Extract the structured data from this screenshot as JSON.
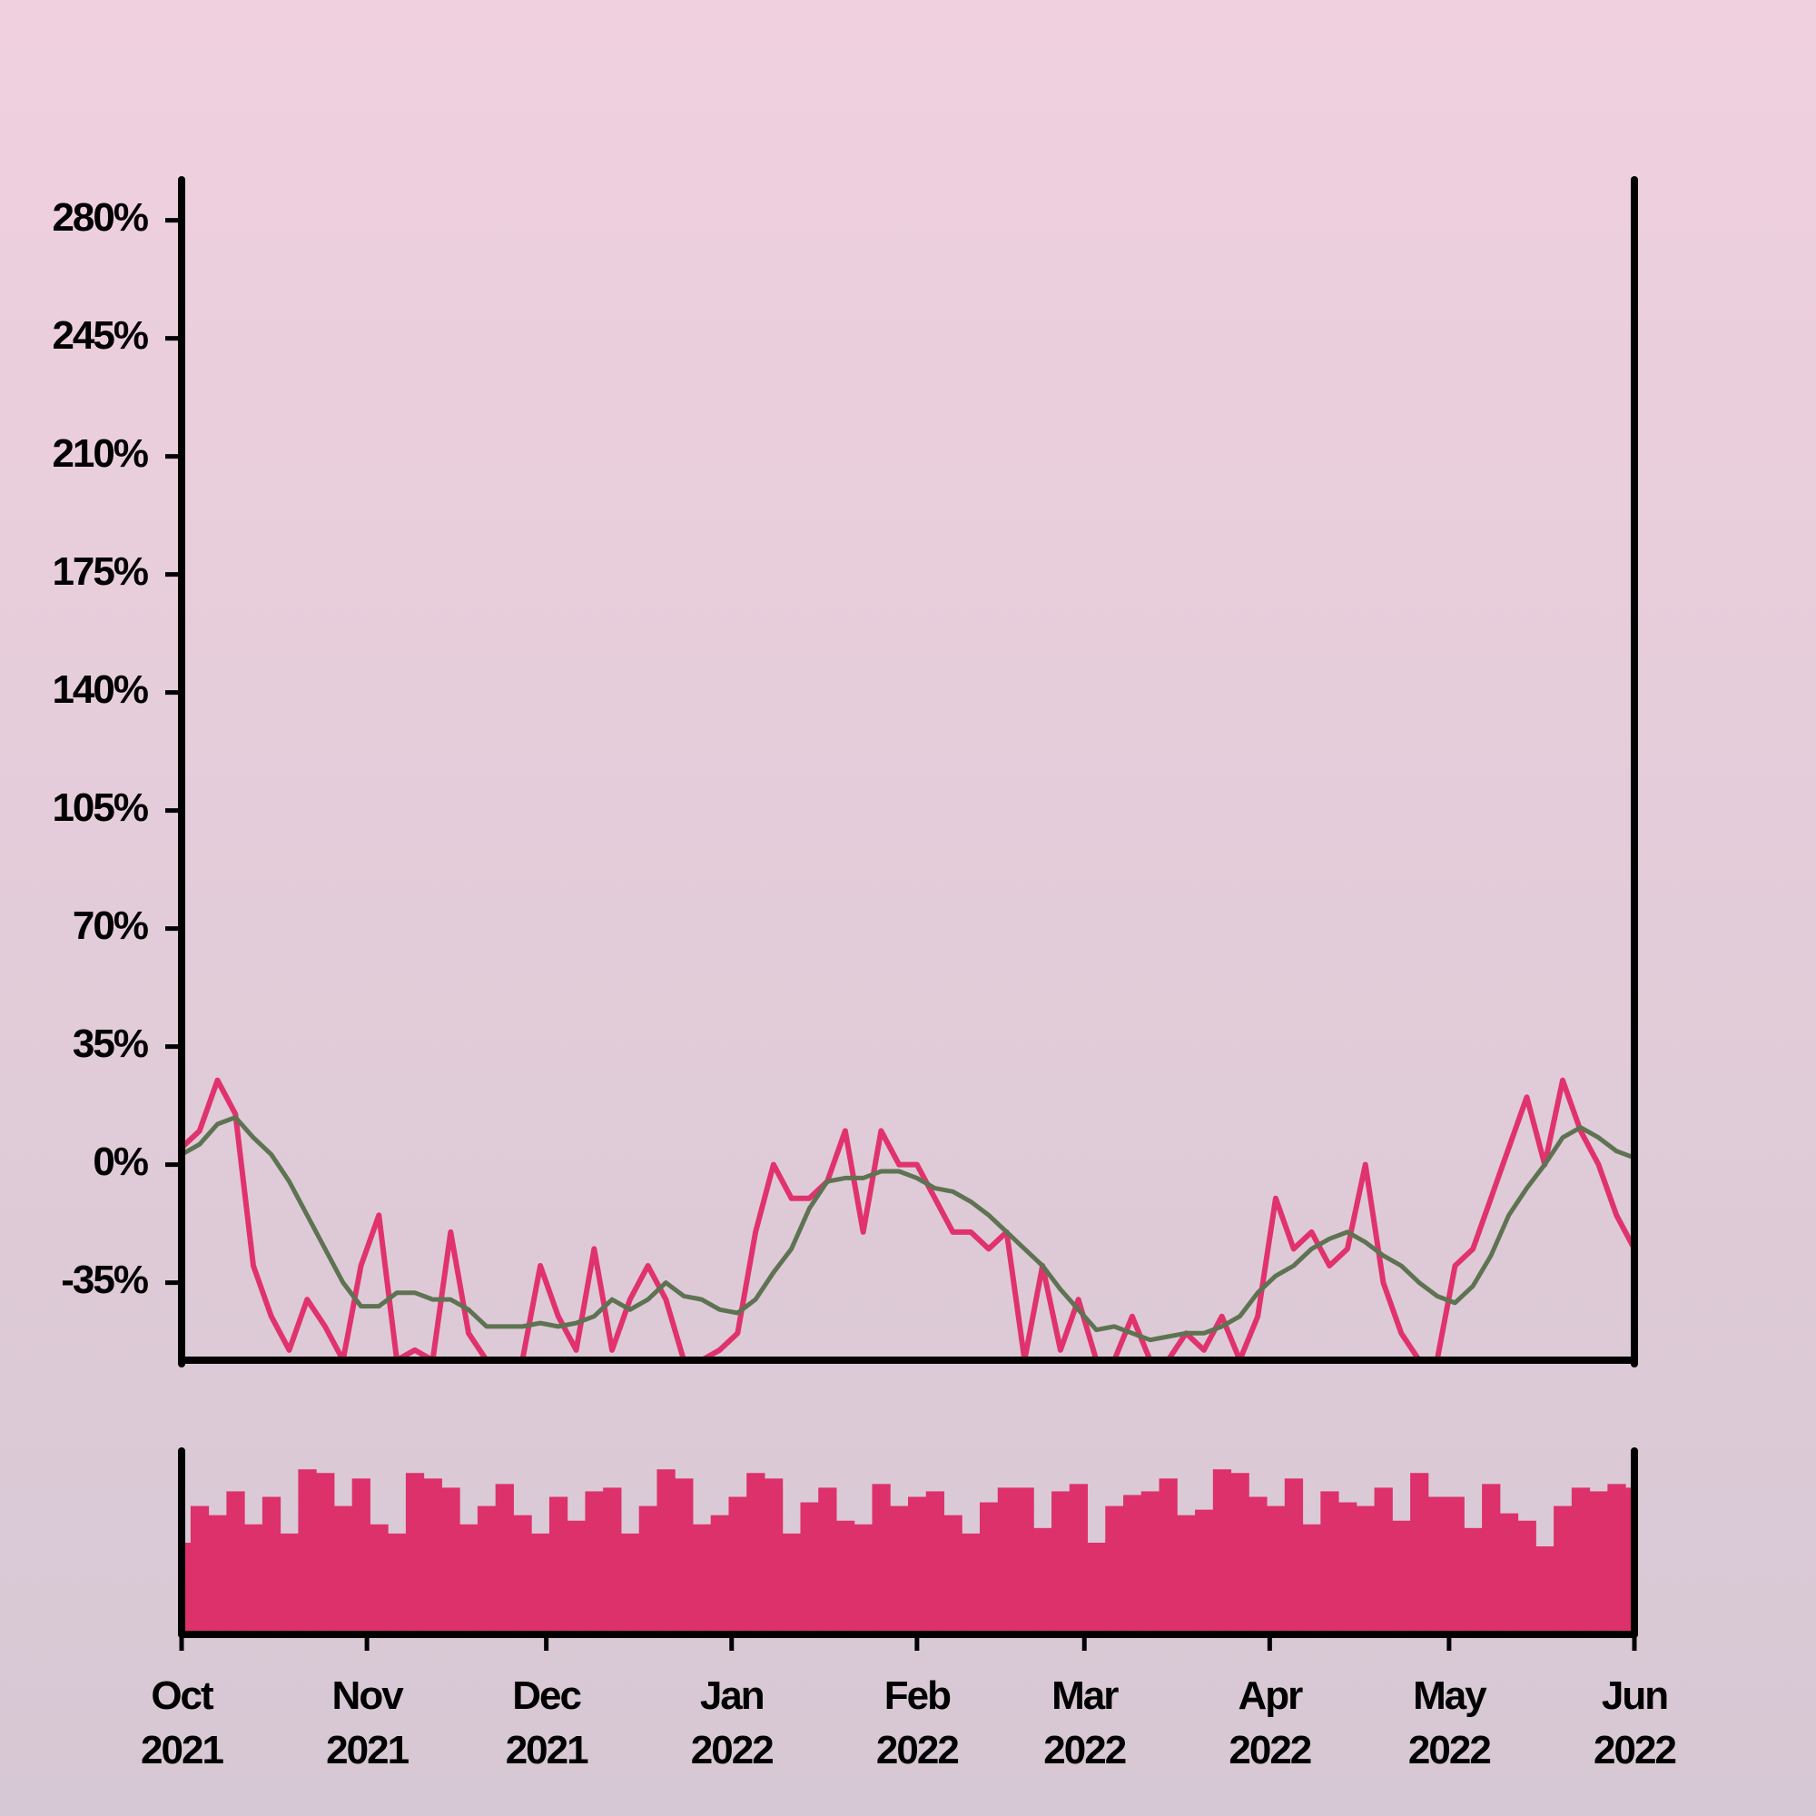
{
  "chart_data": [
    {
      "type": "line",
      "x": [
        0,
        3,
        6,
        9,
        12,
        15,
        18,
        21,
        24,
        27,
        30,
        33,
        36,
        39,
        42,
        45,
        48,
        51,
        54,
        57,
        60,
        63,
        66,
        69,
        72,
        75,
        78,
        81,
        84,
        87,
        90,
        93,
        96,
        99,
        102,
        105,
        108,
        111,
        114,
        117,
        120,
        123,
        126,
        129,
        132,
        135,
        138,
        141,
        144,
        147,
        150,
        153,
        156,
        159,
        162,
        165,
        168,
        171,
        174,
        177,
        180,
        183,
        186,
        189,
        192,
        195,
        198,
        201,
        204,
        207,
        210,
        213,
        216,
        219,
        222,
        225,
        228,
        231,
        234,
        237,
        240,
        243
      ],
      "xlim": [
        0,
        243
      ],
      "xticks": [
        {
          "value": 0,
          "label": "Oct 2021"
        },
        {
          "value": 31,
          "label": "Nov 2021"
        },
        {
          "value": 61,
          "label": "Dec 2021"
        },
        {
          "value": 92,
          "label": "Jan 2022"
        },
        {
          "value": 123,
          "label": "Feb 2022"
        },
        {
          "value": 151,
          "label": "Mar 2022"
        },
        {
          "value": 182,
          "label": "Apr 2022"
        },
        {
          "value": 212,
          "label": "May 2022"
        },
        {
          "value": 243,
          "label": "Jun 2022"
        }
      ],
      "ylim": [
        -58,
        292
      ],
      "yticks": [
        {
          "value": -35,
          "label": "-35%"
        },
        {
          "value": 0,
          "label": "0%"
        },
        {
          "value": 35,
          "label": "35%"
        },
        {
          "value": 70,
          "label": "70%"
        },
        {
          "value": 105,
          "label": "105%"
        },
        {
          "value": 140,
          "label": "140%"
        },
        {
          "value": 175,
          "label": "175%"
        },
        {
          "value": 210,
          "label": "210%"
        },
        {
          "value": 245,
          "label": "245%"
        },
        {
          "value": 280,
          "label": "280%"
        }
      ],
      "series": [
        {
          "color": "#e0336e",
          "values": [
            5,
            10,
            25,
            15,
            -30,
            -45,
            -55,
            -40,
            -48,
            -58,
            -30,
            -15,
            -58,
            -55,
            -58,
            -20,
            -50,
            -58,
            -58,
            -58,
            -30,
            -45,
            -55,
            -25,
            -55,
            -40,
            -30,
            -40,
            -58,
            -58,
            -55,
            -50,
            -20,
            0,
            -10,
            -10,
            -5,
            10,
            -20,
            10,
            0,
            0,
            -10,
            -20,
            -20,
            -25,
            -20,
            -58,
            -30,
            -55,
            -40,
            -58,
            -58,
            -45,
            -58,
            -58,
            -50,
            -55,
            -45,
            -58,
            -45,
            -10,
            -25,
            -20,
            -30,
            -25,
            0,
            -35,
            -50,
            -58,
            -58,
            -30,
            -25,
            -10,
            5,
            20,
            0,
            25,
            10,
            0,
            -15,
            -25
          ]
        },
        {
          "color": "#5e7352",
          "values": [
            3,
            6,
            12,
            14,
            8,
            3,
            -5,
            -15,
            -25,
            -35,
            -42,
            -42,
            -38,
            -38,
            -40,
            -40,
            -43,
            -48,
            -48,
            -48,
            -47,
            -48,
            -47,
            -45,
            -40,
            -43,
            -40,
            -35,
            -39,
            -40,
            -43,
            -44,
            -40,
            -32,
            -25,
            -13,
            -5,
            -4,
            -4,
            -2,
            -2,
            -4,
            -7,
            -8,
            -11,
            -15,
            -20,
            -25,
            -30,
            -37,
            -43,
            -49,
            -48,
            -50,
            -52,
            -51,
            -50,
            -50,
            -48,
            -45,
            -38,
            -33,
            -30,
            -25,
            -22,
            -20,
            -23,
            -27,
            -30,
            -35,
            -39,
            -41,
            -36,
            -27,
            -15,
            -7,
            0,
            8,
            11,
            8,
            4,
            2
          ]
        }
      ]
    },
    {
      "type": "bar",
      "x": [
        0,
        3,
        6,
        9,
        12,
        15,
        18,
        21,
        24,
        27,
        30,
        33,
        36,
        39,
        42,
        45,
        48,
        51,
        54,
        57,
        60,
        63,
        66,
        69,
        72,
        75,
        78,
        81,
        84,
        87,
        90,
        93,
        96,
        99,
        102,
        105,
        108,
        111,
        114,
        117,
        120,
        123,
        126,
        129,
        132,
        135,
        138,
        141,
        144,
        147,
        150,
        153,
        156,
        159,
        162,
        165,
        168,
        171,
        174,
        177,
        180,
        183,
        186,
        189,
        192,
        195,
        198,
        201,
        204,
        207,
        210,
        213,
        216,
        219,
        222,
        225,
        228,
        231,
        234,
        237,
        240,
        243
      ],
      "xlim": [
        0,
        243
      ],
      "ylim": [
        0,
        100
      ],
      "color": "#dd316b",
      "values": [
        50,
        70,
        65,
        78,
        60,
        75,
        55,
        90,
        88,
        70,
        85,
        60,
        55,
        88,
        85,
        80,
        60,
        70,
        82,
        65,
        55,
        75,
        62,
        78,
        80,
        55,
        70,
        90,
        85,
        60,
        65,
        75,
        88,
        85,
        55,
        72,
        80,
        62,
        60,
        82,
        70,
        75,
        78,
        65,
        55,
        72,
        80,
        80,
        58,
        78,
        82,
        50,
        70,
        76,
        78,
        85,
        65,
        68,
        90,
        88,
        75,
        70,
        85,
        60,
        78,
        72,
        70,
        80,
        62,
        88,
        75,
        75,
        58,
        82,
        66,
        62,
        48,
        70,
        80,
        78,
        82,
        80
      ]
    }
  ]
}
